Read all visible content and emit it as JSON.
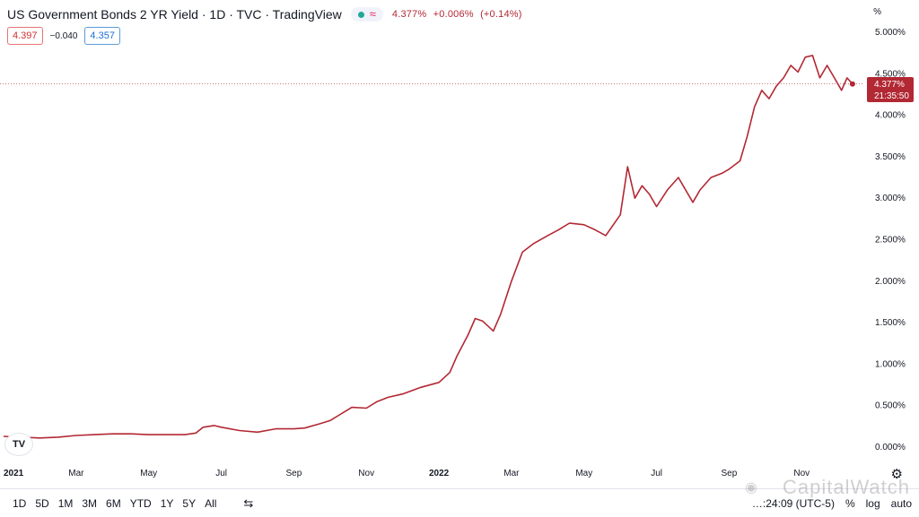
{
  "header": {
    "title": "US Government Bonds 2 YR Yield · 1D · TVC · TradingView",
    "wave_glyph": "≈",
    "last_value": "4.377%",
    "change": "+0.006%",
    "change_pct": "(+0.14%)"
  },
  "price_boxes": {
    "sell": "4.397",
    "spread": "−0.040",
    "buy": "4.357"
  },
  "axis_unit": "%",
  "last_tag": {
    "value": "4.377%",
    "countdown": "21:35:50"
  },
  "bottom_bar": {
    "ranges": [
      "1D",
      "5D",
      "1M",
      "3M",
      "6M",
      "YTD",
      "1Y",
      "5Y",
      "All"
    ],
    "clock": "…:24:09 (UTC-5)",
    "pct_toggle": "%",
    "log_toggle": "log",
    "auto_toggle": "auto"
  },
  "watermark": "CapitalWatch",
  "colors": {
    "line": "#b22833",
    "tag": "#b22833",
    "axis_text": "#131722"
  },
  "icons": {
    "logo": "tradingview-logo-icon",
    "settings": "gear-icon",
    "compare": "compare-icon",
    "weibo": "weibo-icon"
  },
  "chart_data": {
    "type": "line",
    "title": "US Government Bonds 2 YR Yield · 1D · TVC · TradingView",
    "xlabel": "",
    "ylabel": "%",
    "x_ticks": [
      {
        "label": "2021",
        "month": 0,
        "year_tick": true
      },
      {
        "label": "Mar",
        "month": 2
      },
      {
        "label": "May",
        "month": 4
      },
      {
        "label": "Jul",
        "month": 6
      },
      {
        "label": "Sep",
        "month": 8
      },
      {
        "label": "Nov",
        "month": 10
      },
      {
        "label": "2022",
        "month": 12,
        "year_tick": true
      },
      {
        "label": "Mar",
        "month": 14
      },
      {
        "label": "May",
        "month": 16
      },
      {
        "label": "Jul",
        "month": 18
      },
      {
        "label": "Sep",
        "month": 20
      },
      {
        "label": "Nov",
        "month": 22
      }
    ],
    "y_ticks": [
      "0.000%",
      "0.500%",
      "1.000%",
      "1.500%",
      "2.000%",
      "2.500%",
      "3.000%",
      "3.500%",
      "4.000%",
      "4.500%",
      "5.000%"
    ],
    "ylim": [
      0,
      5
    ],
    "xlim": [
      -0.1,
      23.7
    ],
    "grid": false,
    "last_value": 4.377,
    "series": [
      {
        "points": [
          [
            0.0,
            0.13
          ],
          [
            0.5,
            0.12
          ],
          [
            1.0,
            0.11
          ],
          [
            1.5,
            0.12
          ],
          [
            2.0,
            0.14
          ],
          [
            2.5,
            0.15
          ],
          [
            3.0,
            0.16
          ],
          [
            3.5,
            0.16
          ],
          [
            4.0,
            0.15
          ],
          [
            4.5,
            0.15
          ],
          [
            5.0,
            0.15
          ],
          [
            5.3,
            0.17
          ],
          [
            5.5,
            0.24
          ],
          [
            5.8,
            0.26
          ],
          [
            6.0,
            0.24
          ],
          [
            6.5,
            0.2
          ],
          [
            7.0,
            0.18
          ],
          [
            7.5,
            0.22
          ],
          [
            8.0,
            0.22
          ],
          [
            8.3,
            0.23
          ],
          [
            8.7,
            0.28
          ],
          [
            9.0,
            0.32
          ],
          [
            9.3,
            0.4
          ],
          [
            9.6,
            0.48
          ],
          [
            10.0,
            0.47
          ],
          [
            10.3,
            0.55
          ],
          [
            10.6,
            0.6
          ],
          [
            11.0,
            0.64
          ],
          [
            11.5,
            0.72
          ],
          [
            12.0,
            0.78
          ],
          [
            12.3,
            0.9
          ],
          [
            12.5,
            1.1
          ],
          [
            12.8,
            1.35
          ],
          [
            13.0,
            1.55
          ],
          [
            13.2,
            1.52
          ],
          [
            13.5,
            1.4
          ],
          [
            13.7,
            1.6
          ],
          [
            14.0,
            2.0
          ],
          [
            14.3,
            2.35
          ],
          [
            14.6,
            2.45
          ],
          [
            15.0,
            2.55
          ],
          [
            15.3,
            2.62
          ],
          [
            15.6,
            2.7
          ],
          [
            16.0,
            2.68
          ],
          [
            16.3,
            2.62
          ],
          [
            16.6,
            2.55
          ],
          [
            17.0,
            2.8
          ],
          [
            17.2,
            3.38
          ],
          [
            17.4,
            3.0
          ],
          [
            17.6,
            3.15
          ],
          [
            17.8,
            3.05
          ],
          [
            18.0,
            2.9
          ],
          [
            18.3,
            3.1
          ],
          [
            18.6,
            3.25
          ],
          [
            18.8,
            3.1
          ],
          [
            19.0,
            2.95
          ],
          [
            19.2,
            3.1
          ],
          [
            19.5,
            3.25
          ],
          [
            19.8,
            3.3
          ],
          [
            20.0,
            3.35
          ],
          [
            20.3,
            3.45
          ],
          [
            20.5,
            3.75
          ],
          [
            20.7,
            4.1
          ],
          [
            20.9,
            4.3
          ],
          [
            21.1,
            4.2
          ],
          [
            21.3,
            4.35
          ],
          [
            21.5,
            4.45
          ],
          [
            21.7,
            4.6
          ],
          [
            21.9,
            4.52
          ],
          [
            22.1,
            4.7
          ],
          [
            22.3,
            4.72
          ],
          [
            22.5,
            4.45
          ],
          [
            22.7,
            4.6
          ],
          [
            22.9,
            4.45
          ],
          [
            23.1,
            4.3
          ],
          [
            23.25,
            4.45
          ],
          [
            23.4,
            4.377
          ]
        ]
      }
    ]
  }
}
